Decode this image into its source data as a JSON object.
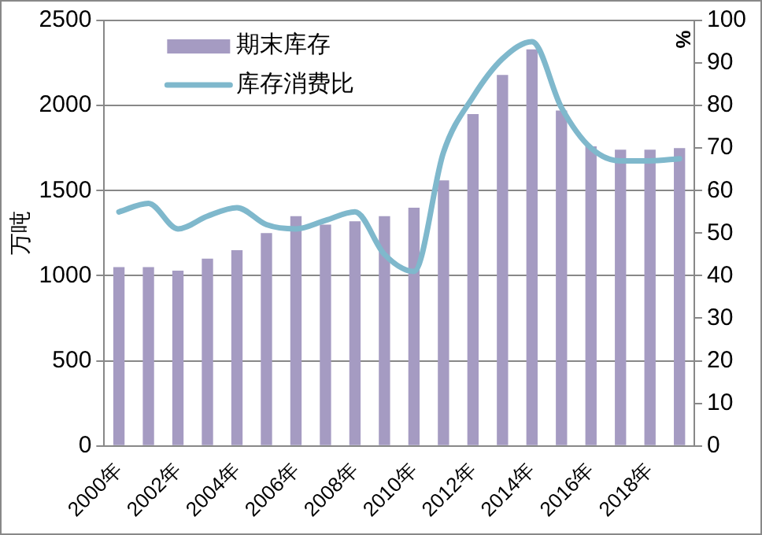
{
  "chart_data": {
    "type": "bar",
    "ylabel": "万吨",
    "y2label": "%",
    "categories": [
      "2000年",
      null,
      "2002年",
      null,
      "2004年",
      null,
      "2006年",
      null,
      "2008年",
      null,
      "2010年",
      null,
      "2012年",
      null,
      "2014年",
      null,
      "2016年",
      null,
      "2018年",
      null
    ],
    "series": [
      {
        "name": "期末库存",
        "color": "#a59bc2",
        "values": [
          1050,
          1050,
          1030,
          1100,
          1150,
          1250,
          1350,
          1300,
          1320,
          1350,
          1400,
          1560,
          1950,
          2180,
          2330,
          1970,
          1760,
          1740,
          1740,
          1750
        ]
      },
      {
        "name": "库存消费比",
        "type": "line",
        "axis": "y2",
        "color": "#7fb8cc",
        "values": [
          55,
          57,
          51,
          54,
          56,
          52,
          51,
          53,
          55,
          45,
          41,
          69,
          82,
          91,
          95,
          79.5,
          70,
          67,
          67,
          67.5
        ]
      }
    ],
    "ylim": [
      0,
      2500
    ],
    "yticks": [
      0,
      500,
      1000,
      1500,
      2000,
      2500
    ],
    "y2lim": [
      0,
      100
    ],
    "y2ticks": [
      0,
      10,
      20,
      30,
      40,
      50,
      60,
      70,
      80,
      90,
      100
    ],
    "grid": "y",
    "legend": "top left",
    "marker": "none",
    "line_style": "solid"
  }
}
